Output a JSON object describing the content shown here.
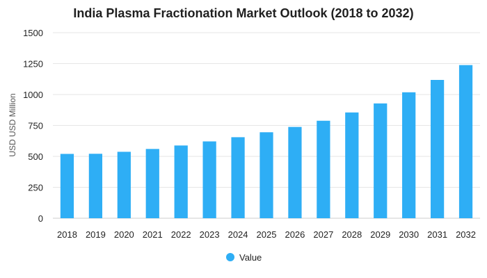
{
  "chart_data": {
    "type": "bar",
    "title": "India Plasma Fractionation Market Outlook (2018 to 2032)",
    "xlabel": "",
    "ylabel": "USD USD Million",
    "ylim": [
      0,
      1500
    ],
    "yticks": [
      0,
      250,
      500,
      750,
      1000,
      1250,
      1500
    ],
    "grid": true,
    "legend_position": "bottom",
    "bar_color": "#2eaef5",
    "categories": [
      "2018",
      "2019",
      "2020",
      "2021",
      "2022",
      "2023",
      "2024",
      "2025",
      "2026",
      "2027",
      "2028",
      "2029",
      "2030",
      "2031",
      "2032"
    ],
    "series": [
      {
        "name": "Value",
        "values": [
          520,
          521,
          537,
          560,
          588,
          621,
          655,
          695,
          738,
          788,
          855,
          928,
          1018,
          1118,
          1238
        ]
      }
    ]
  }
}
